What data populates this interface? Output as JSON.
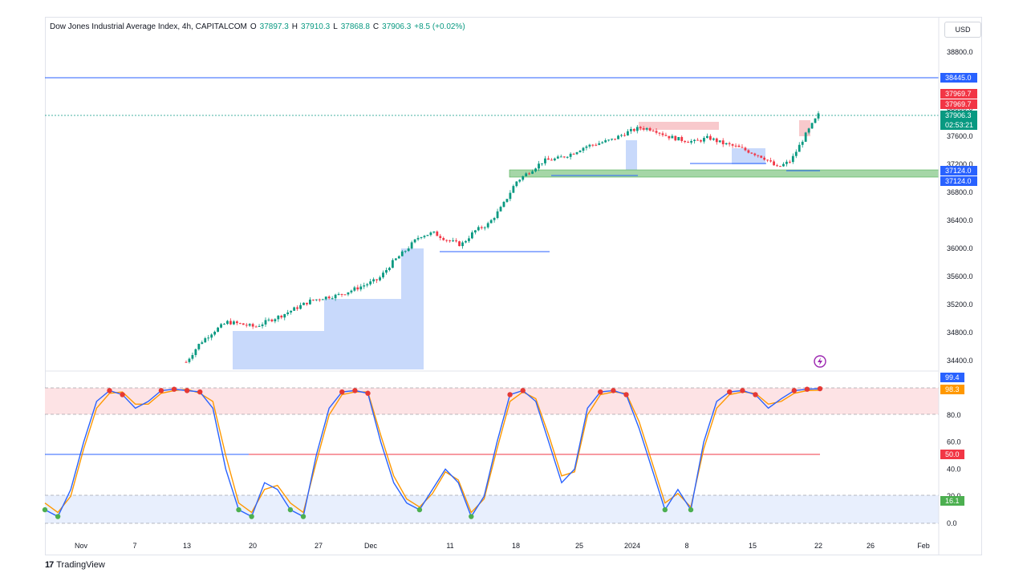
{
  "header": {
    "symbol": "Dow Jones Industrial Average Index, 4h, CAPITALCOM",
    "open_label": "O",
    "open": "37897.3",
    "high_label": "H",
    "high": "37910.3",
    "low_label": "L",
    "low": "37868.8",
    "close_label": "C",
    "close": "37906.3",
    "change": "+8.5 (+0.02%)"
  },
  "currency": "USD",
  "branding": "TradingView",
  "colors": {
    "up": "#089981",
    "down": "#f23645",
    "accent": "#2962ff",
    "fvg_blue": "#c8d9fb",
    "fvg_red": "#f8c9cc",
    "zone_green": "#a5d6a7",
    "stoch_k": "#2962ff",
    "stoch_d": "#ff9800"
  },
  "chart_data": [
    {
      "type": "line",
      "subtype": "candlestick",
      "title": "",
      "ylim": [
        34200,
        39000
      ],
      "y_ticks": [
        "38800.0",
        "38400.0",
        "38000.0",
        "37600.0",
        "37200.0",
        "36800.0",
        "36400.0",
        "36000.0",
        "35600.0",
        "35200.0",
        "34800.0",
        "34400.0"
      ],
      "x_ticks": [
        "Nov",
        "7",
        "13",
        "20",
        "27",
        "Dec",
        "11",
        "18",
        "25",
        "2024",
        "8",
        "15",
        "22",
        "26",
        "Feb"
      ],
      "series": [
        {
          "values": [
            34380,
            34650,
            34820,
            34950,
            34920,
            34880,
            34970,
            35050,
            35150,
            35250,
            35300,
            35330,
            35400,
            35480,
            35560,
            35800,
            35980,
            36180,
            36220,
            36120,
            36050,
            36250,
            36350,
            36600,
            36950,
            37100,
            37250,
            37280,
            37350,
            37450,
            37500,
            37550,
            37650,
            37720,
            37700,
            37600,
            37550,
            37520,
            37580,
            37500,
            37450,
            37380,
            37300,
            37150,
            37250,
            37600,
            37906
          ]
        }
      ],
      "price_tags": [
        "38445.0",
        "37969.7",
        "37969.7",
        "37906.3",
        "02:53:21",
        "37124.0",
        "37124.0"
      ],
      "levels": [
        38445.0,
        37906.3,
        37124.0
      ]
    },
    {
      "type": "line",
      "title": "",
      "ylim": [
        -2,
        102
      ],
      "y_ticks": [
        "80.0",
        "60.0",
        "40.0",
        "20.0",
        "0.0"
      ],
      "bands": {
        "upper": 80,
        "middle": 50,
        "lower": 20
      },
      "series": [
        {
          "values": [
            10,
            5,
            25,
            60,
            90,
            98,
            95,
            85,
            90,
            98,
            99,
            98,
            97,
            85,
            40,
            10,
            5,
            30,
            25,
            10,
            5,
            50,
            85,
            97,
            98,
            96,
            60,
            30,
            15,
            10,
            25,
            40,
            30,
            5,
            20,
            60,
            95,
            98,
            90,
            60,
            30,
            40,
            85,
            97,
            98,
            95,
            70,
            40,
            10,
            25,
            10,
            60,
            90,
            97,
            98,
            95,
            85,
            92,
            98,
            99,
            99.4
          ]
        },
        {
          "values": [
            15,
            8,
            20,
            55,
            85,
            96,
            97,
            88,
            88,
            96,
            98,
            99,
            96,
            90,
            50,
            15,
            8,
            25,
            28,
            15,
            8,
            45,
            80,
            95,
            97,
            97,
            65,
            35,
            18,
            12,
            22,
            38,
            32,
            8,
            18,
            55,
            90,
            97,
            92,
            65,
            35,
            38,
            80,
            95,
            97,
            96,
            75,
            45,
            15,
            22,
            12,
            55,
            85,
            95,
            97,
            96,
            88,
            90,
            96,
            98,
            98.3
          ]
        }
      ],
      "value_tags": [
        "99.4",
        "98.3",
        "50.0",
        "16.1"
      ]
    }
  ]
}
